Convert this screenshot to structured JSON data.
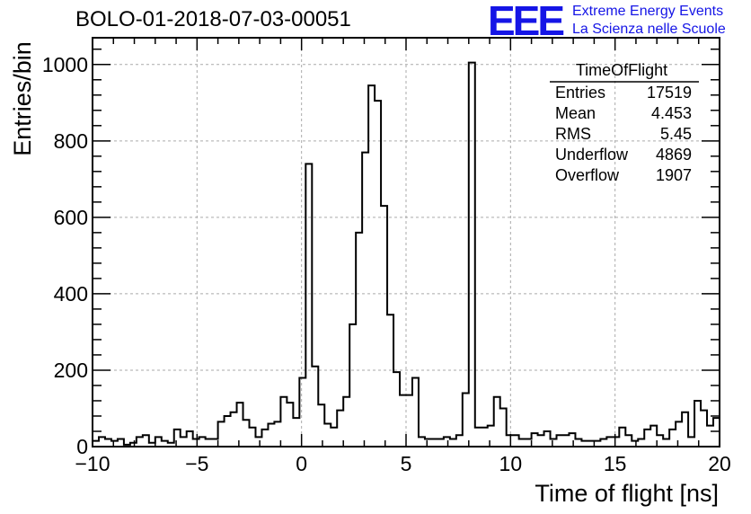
{
  "title": "BOLO-01-2018-07-03-00051",
  "logo": {
    "mark": "EEE",
    "line1": "Extreme Energy Events",
    "line2": "La Scienza nelle Scuole",
    "color": "#1515e6"
  },
  "stats": {
    "title": "TimeOfFlight",
    "rows": [
      {
        "label": "Entries",
        "value": "17519"
      },
      {
        "label": "Mean",
        "value": "4.453"
      },
      {
        "label": "RMS",
        "value": "5.45"
      },
      {
        "label": "Underflow",
        "value": "4869"
      },
      {
        "label": "Overflow",
        "value": "1907"
      }
    ]
  },
  "chart_data": {
    "type": "bar",
    "style": "step-histogram",
    "title": "BOLO-01-2018-07-03-00051",
    "xlabel": "Time of flight [ns]",
    "ylabel": "Entries/bin",
    "xlim": [
      -10,
      20
    ],
    "ylim": [
      0,
      1070
    ],
    "bin_width": 0.333,
    "xticks": [
      -10,
      -5,
      0,
      5,
      10,
      15,
      20
    ],
    "xtick_labels": [
      "−10",
      "−5",
      "0",
      "5",
      "10",
      "15",
      "20"
    ],
    "yticks": [
      0,
      200,
      400,
      600,
      800,
      1000
    ],
    "ytick_labels": [
      "0",
      "200",
      "400",
      "600",
      "800",
      "1000"
    ],
    "grid": true,
    "values": [
      15,
      25,
      20,
      15,
      20,
      5,
      10,
      25,
      30,
      10,
      25,
      15,
      10,
      45,
      25,
      40,
      20,
      25,
      20,
      20,
      65,
      80,
      90,
      115,
      70,
      50,
      25,
      45,
      60,
      65,
      130,
      115,
      75,
      180,
      740,
      210,
      110,
      60,
      50,
      95,
      130,
      320,
      560,
      770,
      945,
      905,
      630,
      345,
      195,
      135,
      135,
      180,
      25,
      20,
      20,
      20,
      25,
      20,
      30,
      140,
      1005,
      50,
      50,
      55,
      130,
      100,
      30,
      30,
      20,
      20,
      35,
      30,
      40,
      20,
      30,
      30,
      35,
      20,
      15,
      15,
      15,
      20,
      25,
      25,
      50,
      30,
      15,
      20,
      45,
      55,
      30,
      20,
      45,
      65,
      90,
      25,
      120,
      95,
      55,
      75
    ]
  }
}
